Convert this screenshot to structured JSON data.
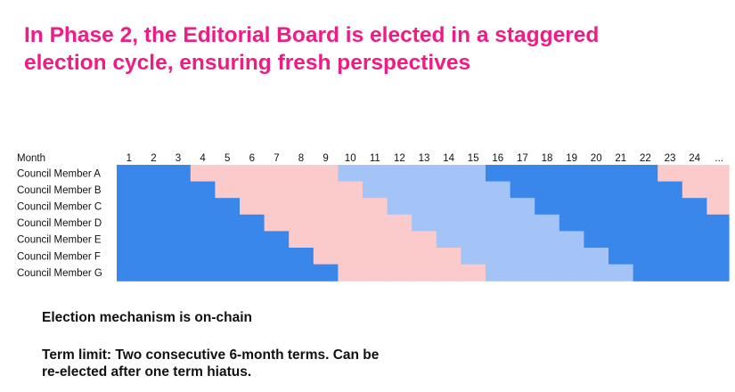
{
  "title_lines": [
    "In Phase 2, the Editorial Board is elected in a staggered",
    "election cycle, ensuring fresh perspectives"
  ],
  "notes": {
    "mechanism": "Election mechanism is on-chain",
    "term_limit_lines": [
      "Term limit: Two consecutive 6-month terms. Can be",
      "re-elected after one term hiatus."
    ]
  },
  "colors": {
    "dark_blue": "#3a87ec",
    "pink": "#fbcacb",
    "light_blue": "#a4c4f7",
    "title": "#ee1d84"
  },
  "chart_data": {
    "type": "heatmap",
    "x_label": "Month",
    "x_ticks": [
      "1",
      "2",
      "3",
      "4",
      "5",
      "6",
      "7",
      "8",
      "9",
      "10",
      "11",
      "12",
      "13",
      "14",
      "15",
      "16",
      "17",
      "18",
      "19",
      "20",
      "21",
      "22",
      "23",
      "24",
      "..."
    ],
    "rows": [
      {
        "name": "Council Member A",
        "states": [
          "D",
          "D",
          "D",
          "P",
          "P",
          "P",
          "P",
          "P",
          "P",
          "L",
          "L",
          "L",
          "L",
          "L",
          "L",
          "D",
          "D",
          "D",
          "D",
          "D",
          "D",
          "D",
          "P",
          "P",
          "P"
        ]
      },
      {
        "name": "Council Member B",
        "states": [
          "D",
          "D",
          "D",
          "D",
          "P",
          "P",
          "P",
          "P",
          "P",
          "P",
          "L",
          "L",
          "L",
          "L",
          "L",
          "L",
          "D",
          "D",
          "D",
          "D",
          "D",
          "D",
          "D",
          "P",
          "P"
        ]
      },
      {
        "name": "Council Member C",
        "states": [
          "D",
          "D",
          "D",
          "D",
          "D",
          "P",
          "P",
          "P",
          "P",
          "P",
          "P",
          "L",
          "L",
          "L",
          "L",
          "L",
          "L",
          "D",
          "D",
          "D",
          "D",
          "D",
          "D",
          "D",
          "P"
        ]
      },
      {
        "name": "Council Member D",
        "states": [
          "D",
          "D",
          "D",
          "D",
          "D",
          "D",
          "P",
          "P",
          "P",
          "P",
          "P",
          "P",
          "L",
          "L",
          "L",
          "L",
          "L",
          "L",
          "D",
          "D",
          "D",
          "D",
          "D",
          "D",
          "D"
        ]
      },
      {
        "name": "Council Member E",
        "states": [
          "D",
          "D",
          "D",
          "D",
          "D",
          "D",
          "D",
          "P",
          "P",
          "P",
          "P",
          "P",
          "P",
          "L",
          "L",
          "L",
          "L",
          "L",
          "L",
          "D",
          "D",
          "D",
          "D",
          "D",
          "D"
        ]
      },
      {
        "name": "Council Member F",
        "states": [
          "D",
          "D",
          "D",
          "D",
          "D",
          "D",
          "D",
          "D",
          "P",
          "P",
          "P",
          "P",
          "P",
          "P",
          "L",
          "L",
          "L",
          "L",
          "L",
          "L",
          "D",
          "D",
          "D",
          "D",
          "D"
        ]
      },
      {
        "name": "Council Member G",
        "states": [
          "D",
          "D",
          "D",
          "D",
          "D",
          "D",
          "D",
          "D",
          "D",
          "P",
          "P",
          "P",
          "P",
          "P",
          "P",
          "L",
          "L",
          "L",
          "L",
          "L",
          "L",
          "D",
          "D",
          "D",
          "D"
        ]
      }
    ],
    "state_colors": {
      "D": "#3a87ec",
      "P": "#fbcacb",
      "L": "#a4c4f7"
    }
  }
}
